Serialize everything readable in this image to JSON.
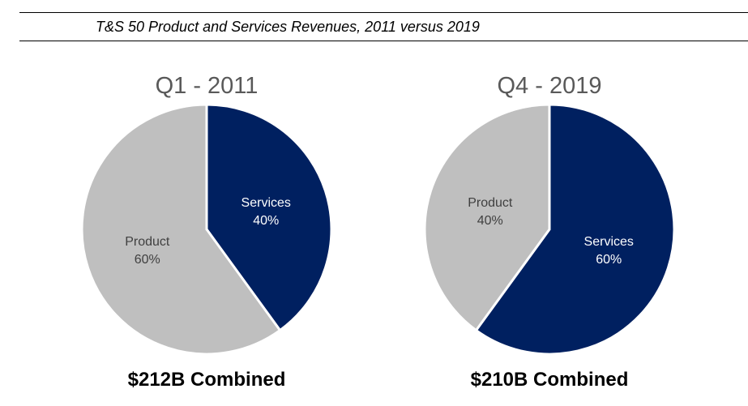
{
  "figure_title": "T&S 50 Product and Services Revenues, 2011 versus 2019",
  "colors": {
    "services": "#002060",
    "product": "#BFBFBF",
    "services_label": "#FFFFFF",
    "product_label": "#404040",
    "pie_title": "#595959"
  },
  "chart_data": [
    {
      "type": "pie",
      "title": "Q1 - 2011",
      "categories": [
        "Services",
        "Product"
      ],
      "values": [
        40,
        60
      ],
      "labels": [
        {
          "name": "Services",
          "value": "40%"
        },
        {
          "name": "Product",
          "value": "60%"
        }
      ],
      "start_angle": "12 o'clock",
      "direction": "clockwise",
      "footer": "$212B Combined"
    },
    {
      "type": "pie",
      "title": "Q4 - 2019",
      "categories": [
        "Services",
        "Product"
      ],
      "values": [
        60,
        40
      ],
      "labels": [
        {
          "name": "Services",
          "value": "60%"
        },
        {
          "name": "Product",
          "value": "40%"
        }
      ],
      "start_angle": "12 o'clock",
      "direction": "clockwise",
      "footer": "$210B Combined"
    }
  ]
}
